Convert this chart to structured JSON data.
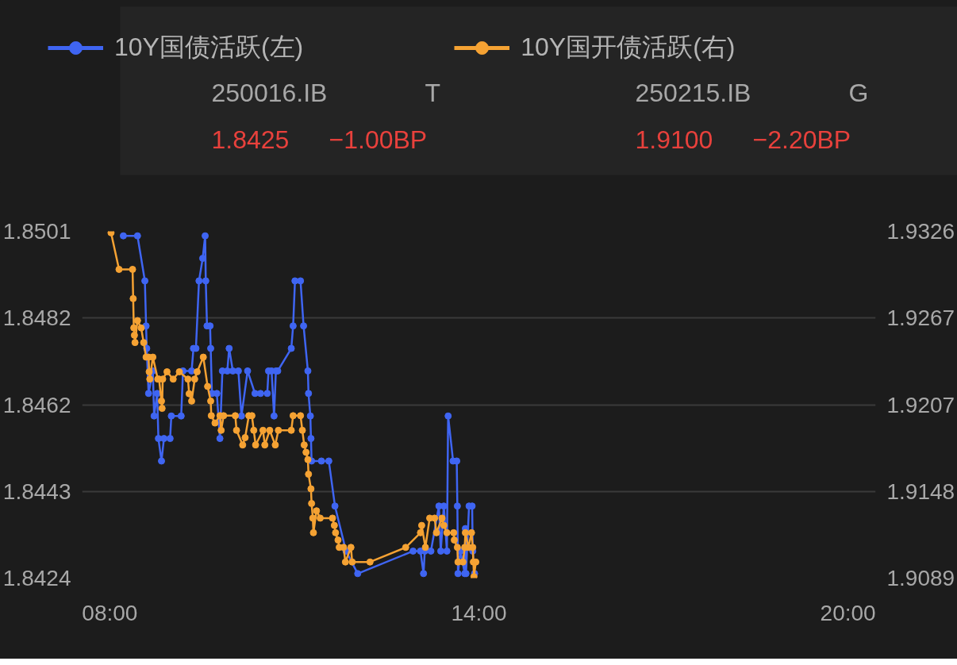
{
  "chart_data": {
    "type": "line",
    "marker": "circle",
    "legend": "top",
    "grid": "y",
    "xlim": [
      7.55,
      20.45
    ],
    "xticks": [
      {
        "value": 8,
        "label": "08:00"
      },
      {
        "value": 14,
        "label": "14:00"
      },
      {
        "value": 20,
        "label": "20:00"
      }
    ],
    "ylim": [
      1.8424,
      1.8501
    ],
    "yticks": [
      {
        "value": 1.8424,
        "label": "1.8424"
      },
      {
        "value": 1.844325,
        "label": "1.8443"
      },
      {
        "value": 1.84625,
        "label": "1.8462"
      },
      {
        "value": 1.848175,
        "label": "1.8482"
      },
      {
        "value": 1.8501,
        "label": "1.8501"
      }
    ],
    "y2lim": [
      1.9089,
      1.9326
    ],
    "y2ticks": [
      {
        "value": 1.9089,
        "label": "1.9089"
      },
      {
        "value": 1.914825,
        "label": "1.9148"
      },
      {
        "value": 1.92075,
        "label": "1.9207"
      },
      {
        "value": 1.926675,
        "label": "1.9267"
      },
      {
        "value": 1.9326,
        "label": "1.9326"
      }
    ],
    "series": [
      {
        "name": "10Y国债活跃(左)",
        "color": "#3f65f2",
        "x": [
          8.22,
          8.45,
          8.57,
          8.59,
          8.6,
          8.63,
          8.7,
          8.72,
          8.77,
          8.79,
          8.84,
          8.88,
          8.98,
          9.0,
          9.16,
          9.19,
          9.33,
          9.36,
          9.4,
          9.45,
          9.51,
          9.55,
          9.56,
          9.58,
          9.63,
          9.64,
          9.66,
          9.74,
          9.79,
          9.83,
          9.91,
          9.94,
          10.0,
          10.09,
          10.14,
          10.24,
          10.36,
          10.45,
          10.56,
          10.58,
          10.63,
          10.67,
          10.7,
          10.73,
          10.95,
          10.98,
          11.01,
          11.1,
          11.15,
          11.22,
          11.23,
          11.26,
          11.27,
          11.28,
          11.44,
          11.56,
          11.66,
          11.84,
          12.03,
          12.93,
          13.05,
          13.1,
          13.12,
          13.22,
          13.35,
          13.38,
          13.43,
          13.48,
          13.5,
          13.58,
          13.64,
          13.65,
          13.66,
          13.7,
          13.77,
          13.78,
          13.79,
          13.84,
          13.89,
          13.9,
          13.93
        ],
        "values": [
          1.85,
          1.85,
          1.849,
          1.848,
          1.8475,
          1.8465,
          1.847,
          1.846,
          1.8465,
          1.8455,
          1.845,
          1.8455,
          1.8455,
          1.846,
          1.846,
          1.847,
          1.847,
          1.8475,
          1.8475,
          1.849,
          1.8495,
          1.85,
          1.849,
          1.848,
          1.848,
          1.8475,
          1.8465,
          1.8465,
          1.8455,
          1.847,
          1.847,
          1.8475,
          1.847,
          1.847,
          1.846,
          1.847,
          1.8465,
          1.8465,
          1.8465,
          1.847,
          1.847,
          1.846,
          1.847,
          1.847,
          1.8475,
          1.848,
          1.849,
          1.849,
          1.848,
          1.847,
          1.8465,
          1.846,
          1.8455,
          1.845,
          1.845,
          1.845,
          1.844,
          1.843,
          1.8425,
          1.843,
          1.843,
          1.8425,
          1.843,
          1.843,
          1.844,
          1.843,
          1.844,
          1.843,
          1.846,
          1.845,
          1.845,
          1.844,
          1.8425,
          1.843,
          1.8425,
          1.8435,
          1.8425,
          1.844,
          1.844,
          1.843,
          1.8425
        ]
      },
      {
        "name": "10Y国开债活跃(右)",
        "color": "#f5a233",
        "axis": "y2",
        "x": [
          8.02,
          8.15,
          8.37,
          8.38,
          8.39,
          8.4,
          8.41,
          8.45,
          8.51,
          8.55,
          8.59,
          8.63,
          8.64,
          8.65,
          8.7,
          8.78,
          8.8,
          8.84,
          8.85,
          8.86,
          8.93,
          9.03,
          9.13,
          9.27,
          9.29,
          9.33,
          9.38,
          9.42,
          9.52,
          9.59,
          9.64,
          9.65,
          9.71,
          9.79,
          9.81,
          9.85,
          10.04,
          10.06,
          10.16,
          10.2,
          10.26,
          10.31,
          10.34,
          10.37,
          10.49,
          10.52,
          10.6,
          10.69,
          10.74,
          10.95,
          10.98,
          11.1,
          11.13,
          11.16,
          11.19,
          11.22,
          11.23,
          11.27,
          11.28,
          11.3,
          11.31,
          11.36,
          11.42,
          11.62,
          11.65,
          11.67,
          11.71,
          11.73,
          11.8,
          11.83,
          11.92,
          11.94,
          12.23,
          12.81,
          13.05,
          13.07,
          13.13,
          13.2,
          13.28,
          13.31,
          13.4,
          13.43,
          13.48,
          13.59,
          13.6,
          13.65,
          13.66,
          13.74,
          13.77,
          13.78,
          13.83,
          13.88,
          13.9,
          13.91,
          13.92,
          13.95
        ],
        "values": [
          1.9325,
          1.93,
          1.93,
          1.928,
          1.926,
          1.9255,
          1.925,
          1.9265,
          1.926,
          1.925,
          1.924,
          1.924,
          1.923,
          1.9225,
          1.924,
          1.9225,
          1.9225,
          1.921,
          1.9205,
          1.9225,
          1.923,
          1.9225,
          1.923,
          1.9225,
          1.9215,
          1.921,
          1.9225,
          1.923,
          1.924,
          1.922,
          1.921,
          1.92,
          1.9195,
          1.92,
          1.919,
          1.92,
          1.92,
          1.919,
          1.918,
          1.9185,
          1.92,
          1.92,
          1.919,
          1.918,
          1.919,
          1.918,
          1.919,
          1.918,
          1.919,
          1.919,
          1.92,
          1.92,
          1.919,
          1.918,
          1.9175,
          1.917,
          1.916,
          1.915,
          1.914,
          1.913,
          1.912,
          1.9135,
          1.913,
          1.913,
          1.9125,
          1.912,
          1.9115,
          1.911,
          1.911,
          1.91,
          1.911,
          1.91,
          1.91,
          1.911,
          1.912,
          1.9125,
          1.911,
          1.913,
          1.913,
          1.912,
          1.913,
          1.9125,
          1.912,
          1.912,
          1.9115,
          1.911,
          1.91,
          1.91,
          1.911,
          1.912,
          1.911,
          1.912,
          1.911,
          1.91,
          1.909,
          1.91
        ]
      }
    ],
    "annotations": [
      "250016.IB",
      "T",
      "1.8425",
      "−1.00BP",
      "250215.IB",
      "G",
      "1.9100",
      "−2.20BP"
    ]
  }
}
